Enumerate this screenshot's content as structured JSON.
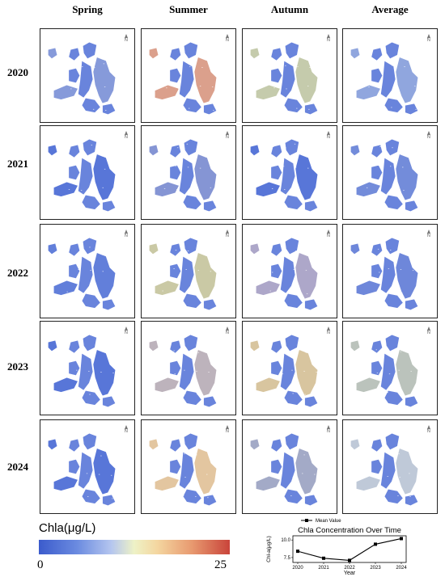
{
  "columns": [
    "Spring",
    "Summer",
    "Autumn",
    "Average"
  ],
  "rows": [
    {
      "year": "2020",
      "tints": [
        "#7f95d8",
        "#d99b86",
        "#c2c8a8",
        "#8aa1dc"
      ]
    },
    {
      "year": "2021",
      "tints": [
        "#4f6fd6",
        "#7e8fd2",
        "#4f6fd6",
        "#6c86d8"
      ]
    },
    {
      "year": "2022",
      "tints": [
        "#5a78d8",
        "#c7c6a0",
        "#a9a2c6",
        "#6681d8"
      ]
    },
    {
      "year": "2023",
      "tints": [
        "#4f6fd6",
        "#b9afb8",
        "#d6c29a",
        "#b7c0b8"
      ]
    },
    {
      "year": "2024",
      "tints": [
        "#4f6fd6",
        "#e1c39b",
        "#9ea5c4",
        "#bcc6d6"
      ]
    }
  ],
  "north_label": "N",
  "colorbar": {
    "label": "Chla(μg/L)",
    "min": "0",
    "max": "25"
  },
  "chart_data": {
    "type": "line",
    "title": "Chla Concentration Over Time",
    "xlabel": "Year",
    "ylabel": "Chl-a(μg/L)",
    "x": [
      "2020",
      "2021",
      "2022",
      "2023",
      "2024"
    ],
    "series": [
      {
        "name": "Mean Value",
        "values": [
          8.4,
          7.4,
          7.1,
          9.4,
          10.2
        ]
      }
    ],
    "ylim": [
      6.8,
      10.6
    ],
    "yticks": [
      "7.5",
      "10.0"
    ],
    "legend": "top-center"
  }
}
